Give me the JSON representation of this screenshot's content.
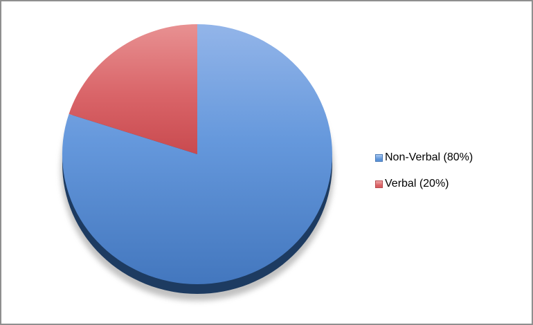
{
  "chart_data": {
    "type": "pie",
    "title": "",
    "legend_position": "right",
    "start_angle_deg": -90,
    "direction": "clockwise",
    "slices": [
      {
        "name": "Non-Verbal",
        "value": 80,
        "label": "Non-Verbal (80%)",
        "gradient_top": "#93B5E9",
        "gradient_mid": "#6598DC",
        "gradient_bottom": "#4377BE",
        "marker_top": "#A9C8F1",
        "marker_bottom": "#5B93D9",
        "marker_border": "#4A7AB5"
      },
      {
        "name": "Verbal",
        "value": 20,
        "label": "Verbal (20%)",
        "gradient_top": "#E89192",
        "gradient_mid": "#D96468",
        "gradient_bottom": "#C94A4F",
        "marker_top": "#EFA6A6",
        "marker_bottom": "#D95F63",
        "marker_border": "#B84A4E"
      }
    ],
    "effects": {
      "depth_rim_color": "#1D3B61",
      "shadow_color": "#8E8E8E"
    }
  },
  "frame": {
    "border_color": "#8F8F8F",
    "background_color": "#FFFFFF"
  }
}
